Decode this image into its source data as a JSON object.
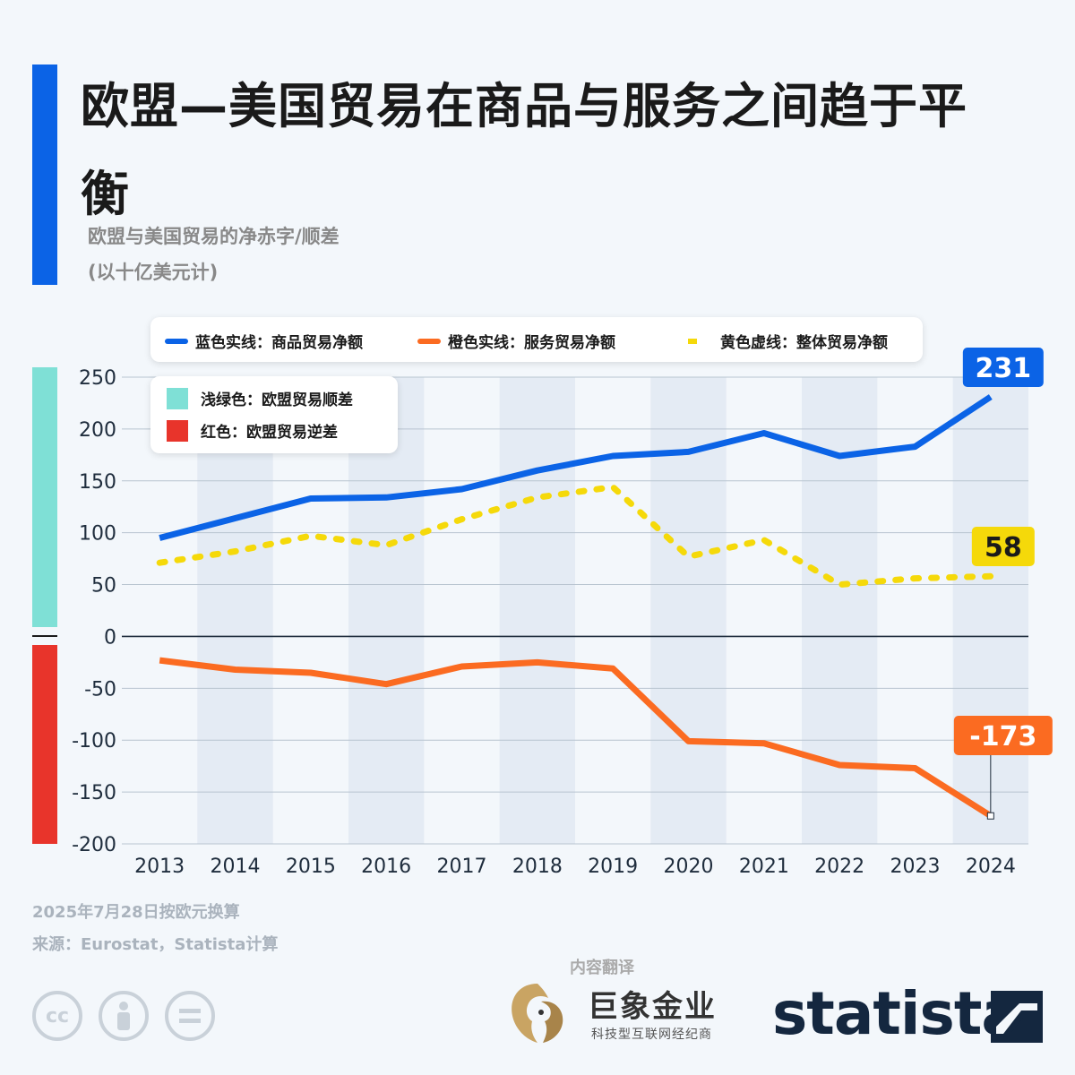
{
  "title": "欧盟—美国贸易在商品与服务之间趋于平衡",
  "subtitle_line1": "欧盟与美国贸易的净赤字/顺差",
  "subtitle_line2": "(以十亿美元计)",
  "legend_top": {
    "goods": "蓝色实线：商品贸易净额",
    "services": "橙色实线：服务贸易净额",
    "overall": "黄色虚线：整体贸易净额"
  },
  "legend_side": {
    "surplus": "浅绿色：欧盟贸易顺差",
    "deficit": "红色：欧盟贸易逆差"
  },
  "footer": {
    "date_note": "2025年7月28日按欧元换算",
    "source": "来源：Eurostat，Statista计算"
  },
  "translation": {
    "label": "内容翻译",
    "brand_name": "巨象金业",
    "brand_sub": "科技型互联网经纪商"
  },
  "statista_logo": "statista",
  "license_icons": [
    "cc-icon",
    "attribution-icon",
    "no-derivatives-icon"
  ],
  "colors": {
    "goods": "#0b63e6",
    "services": "#fb6b21",
    "overall": "#f5d90a",
    "surplus": "#7fe0d6",
    "deficit": "#e8342b",
    "accent": "#0b63e6"
  },
  "chart_data": {
    "type": "line",
    "x": [
      "2013",
      "2014",
      "2015",
      "2016",
      "2017",
      "2018",
      "2019",
      "2020",
      "2021",
      "2022",
      "2023",
      "2024"
    ],
    "ylim": [
      -200,
      250
    ],
    "yticks": [
      250,
      200,
      150,
      100,
      50,
      0,
      -50,
      -100,
      -150,
      -200
    ],
    "grid": true,
    "series": [
      {
        "name": "蓝色实线：商品贸易净额",
        "style": "solid",
        "color": "#0b63e6",
        "values": [
          95,
          114,
          133,
          134,
          142,
          160,
          174,
          178,
          196,
          174,
          183,
          231
        ]
      },
      {
        "name": "橙色实线：服务贸易净额",
        "style": "solid",
        "color": "#fb6b21",
        "values": [
          -23,
          -32,
          -35,
          -46,
          -29,
          -25,
          -31,
          -101,
          -103,
          -124,
          -127,
          -173
        ]
      },
      {
        "name": "黄色虚线：整体贸易净额",
        "style": "dashed",
        "color": "#f5d90a",
        "values": [
          71,
          82,
          97,
          88,
          113,
          134,
          144,
          77,
          93,
          50,
          56,
          58
        ]
      }
    ],
    "end_labels": [
      {
        "series": 0,
        "text": "231"
      },
      {
        "series": 2,
        "text": "58"
      },
      {
        "series": 1,
        "text": "-173"
      }
    ]
  }
}
